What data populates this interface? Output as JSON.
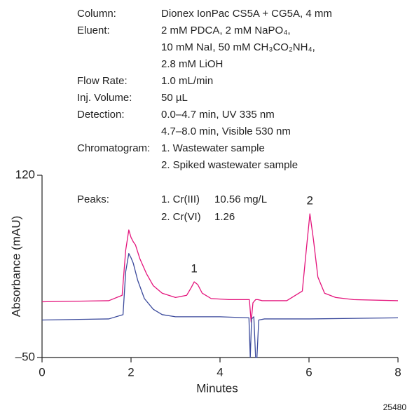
{
  "chart_data": {
    "type": "line",
    "conditions": [
      {
        "label": "Column:",
        "lines": [
          "Dionex IonPac CS5A + CG5A, 4 mm"
        ]
      },
      {
        "label": "Eluent:",
        "lines": [
          "2 mM PDCA, 2 mM NaPO₄,",
          "10 mM NaI, 50 mM CH₃CO₂NH₄,",
          "2.8 mM LiOH"
        ]
      },
      {
        "label": "Flow Rate:",
        "lines": [
          "1.0 mL/min"
        ]
      },
      {
        "label": "Inj. Volume:",
        "lines": [
          "50 µL"
        ]
      },
      {
        "label": "Detection:",
        "lines": [
          "0.0–4.7 min, UV 335 nm",
          "4.7–8.0 min, Visible 530 nm"
        ]
      },
      {
        "label": "Chromatogram:",
        "lines": [
          "1. Wastewater sample",
          "2. Spiked wastewater sample"
        ]
      }
    ],
    "peaks_title": "Peaks:",
    "peaks_table": [
      [
        "1. Cr(III)",
        "10.56 mg/L"
      ],
      [
        "2. Cr(VI)",
        "1.26"
      ]
    ],
    "peaks": [
      {
        "label": "1",
        "x": 3.42
      },
      {
        "label": "2",
        "x": 6.02
      }
    ],
    "x_label": "Minutes",
    "y_label": "Absorbance (mAU)",
    "figure_number": "25480",
    "xlim": [
      0,
      8
    ],
    "xticks": [
      0,
      2,
      4,
      6,
      8
    ],
    "ylim": [
      -50,
      120
    ],
    "yticks": [
      {
        "value": -50,
        "label": "–50"
      },
      120
    ],
    "series": [
      {
        "name": "Spiked wastewater sample",
        "color": "#e4147c",
        "x": [
          0,
          1.5,
          1.8,
          1.88,
          1.95,
          2.0,
          2.05,
          2.1,
          2.2,
          2.35,
          2.5,
          2.7,
          3.0,
          3.25,
          3.35,
          3.42,
          3.5,
          3.6,
          3.8,
          4.2,
          4.66,
          4.7,
          4.74,
          4.8,
          4.85,
          4.95,
          5.5,
          5.85,
          5.95,
          6.02,
          6.1,
          6.2,
          6.35,
          6.6,
          7.0,
          8.0
        ],
        "values": [
          2,
          3,
          8,
          50,
          69,
          62,
          58,
          55,
          42,
          28,
          17,
          10,
          6,
          8,
          15,
          20.6,
          18,
          10,
          5,
          4,
          4,
          -17,
          1,
          4,
          4,
          3,
          3,
          12,
          55,
          84,
          60,
          25,
          10,
          6,
          4,
          3
        ]
      },
      {
        "name": "Wastewater sample",
        "color": "#3b4a9c",
        "x": [
          0,
          1.5,
          1.82,
          1.88,
          1.95,
          2.0,
          2.05,
          2.15,
          2.3,
          2.5,
          2.7,
          3.0,
          4.0,
          4.65,
          4.68,
          4.71,
          4.76,
          4.8,
          4.83,
          4.87,
          5.0,
          6.0,
          8.0
        ],
        "values": [
          -15,
          -14,
          -10,
          30,
          47,
          43,
          38,
          22,
          5,
          -5,
          -10,
          -12,
          -12,
          -13,
          -50,
          -14,
          -12,
          -50,
          -50,
          -15,
          -14,
          -14,
          -13
        ]
      }
    ]
  }
}
